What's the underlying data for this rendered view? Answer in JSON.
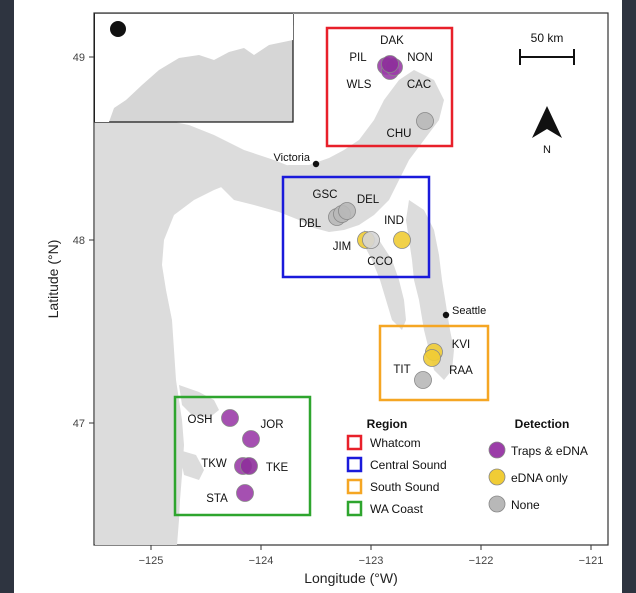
{
  "map": {
    "x_axis_label": "Longitude (°W)",
    "y_axis_label": "Latitude (°N)",
    "x_ticks": [
      "−125",
      "−124",
      "−123",
      "−122",
      "−121"
    ],
    "y_ticks": [
      "47",
      "48",
      "49"
    ],
    "scale_bar_label": "50 km",
    "north_label": "N",
    "cities": {
      "victoria": "Victoria",
      "seattle": "Seattle"
    },
    "sites": {
      "dak": "DAK",
      "pil": "PIL",
      "non": "NON",
      "wls": "WLS",
      "cac": "CAC",
      "chu": "CHU",
      "gsc": "GSC",
      "del": "DEL",
      "dbl": "DBL",
      "ind": "IND",
      "jim": "JIM",
      "cco": "CCO",
      "kvi": "KVI",
      "tit": "TIT",
      "raa": "RAA",
      "osh": "OSH",
      "jor": "JOR",
      "tkw": "TKW",
      "tke": "TKE",
      "sta": "STA"
    },
    "legend_region": {
      "title": "Region",
      "items": [
        "Whatcom",
        "Central Sound",
        "South Sound",
        "WA Coast"
      ],
      "colors": [
        "#e8202a",
        "#1a1adb",
        "#f5a623",
        "#2ea52e"
      ]
    },
    "legend_detection": {
      "title": "Detection",
      "items": [
        "Traps & eDNA",
        "eDNA only",
        "None"
      ],
      "colors": [
        "#9b3da8",
        "#f0cc35",
        "#b8b8b8"
      ]
    }
  }
}
